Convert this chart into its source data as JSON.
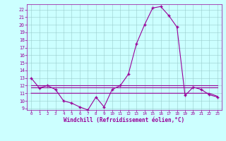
{
  "xlabel": "Windchill (Refroidissement éolien,°C)",
  "x": [
    0,
    1,
    2,
    3,
    4,
    5,
    6,
    7,
    8,
    9,
    10,
    11,
    12,
    13,
    14,
    15,
    16,
    17,
    18,
    19,
    20,
    21,
    22,
    23
  ],
  "line1": [
    13,
    11.7,
    12,
    11.5,
    10,
    9.7,
    9.2,
    8.8,
    10.5,
    9.2,
    11.5,
    12,
    13.5,
    17.5,
    20,
    22.2,
    22.4,
    21.2,
    19.7,
    10.7,
    11.8,
    11.5,
    10.8,
    10.5
  ],
  "line2": [
    12.0,
    12.0,
    12.0,
    12.0,
    12.0,
    12.0,
    12.0,
    12.0,
    12.0,
    12.0,
    12.0,
    12.0,
    12.0,
    12.0,
    12.0,
    12.0,
    12.0,
    12.0,
    12.0,
    12.0,
    12.0,
    12.0,
    12.0,
    12.0
  ],
  "line3": [
    11.8,
    11.8,
    11.8,
    11.8,
    11.8,
    11.8,
    11.8,
    11.8,
    11.8,
    11.8,
    11.8,
    11.8,
    11.8,
    11.8,
    11.8,
    11.8,
    11.8,
    11.8,
    11.8,
    11.8,
    11.8,
    11.8,
    11.8,
    11.8
  ],
  "line4": [
    11.0,
    11.0,
    11.0,
    11.0,
    11.0,
    11.0,
    11.0,
    11.0,
    11.0,
    11.0,
    11.0,
    11.0,
    11.0,
    11.0,
    11.0,
    11.0,
    11.0,
    11.0,
    11.0,
    11.0,
    11.0,
    11.0,
    11.0,
    10.6
  ],
  "line_color": "#990099",
  "bg_color": "#ccffff",
  "grid_color": "#99cccc",
  "ylim": [
    8.8,
    22.7
  ],
  "yticks": [
    9,
    10,
    11,
    12,
    13,
    14,
    15,
    16,
    17,
    18,
    19,
    20,
    21,
    22
  ],
  "xticks": [
    0,
    1,
    2,
    3,
    4,
    5,
    6,
    7,
    8,
    9,
    10,
    11,
    12,
    13,
    14,
    15,
    16,
    17,
    18,
    19,
    20,
    21,
    22,
    23
  ],
  "marker": "+"
}
